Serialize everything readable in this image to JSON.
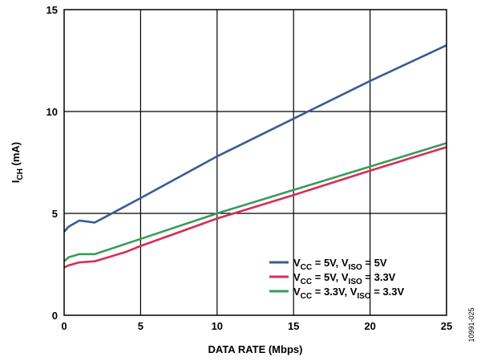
{
  "chart_data": {
    "type": "line",
    "xlabel": "DATA RATE (Mbps)",
    "ylabel": {
      "main": "I",
      "sub": "CH",
      "rest": " (mA)"
    },
    "xlim": [
      0,
      25
    ],
    "ylim": [
      0,
      15
    ],
    "x_ticks": [
      0,
      5,
      10,
      15,
      20,
      25
    ],
    "y_ticks": [
      0,
      5,
      10,
      15
    ],
    "grid": true,
    "legend_position": "bottom-right",
    "figure_id": "10991-025",
    "series": [
      {
        "name": "VCC = 5V, VISO = 5V",
        "legend": [
          {
            "t": "V",
            "s": false
          },
          {
            "t": "CC",
            "s": true
          },
          {
            "t": " = 5V, V",
            "s": false
          },
          {
            "t": "ISO",
            "s": true
          },
          {
            "t": " = 5V",
            "s": false
          }
        ],
        "color": "#3a5b95",
        "x": [
          0,
          0.3,
          1,
          2,
          3,
          5,
          10,
          15,
          20,
          25
        ],
        "y": [
          4.1,
          4.35,
          4.65,
          4.55,
          4.95,
          5.75,
          7.8,
          9.65,
          11.5,
          13.25
        ]
      },
      {
        "name": "VCC = 5V, VISO = 3.3V",
        "legend": [
          {
            "t": "V",
            "s": false
          },
          {
            "t": "CC",
            "s": true
          },
          {
            "t": " = 5V, V",
            "s": false
          },
          {
            "t": "ISO",
            "s": true
          },
          {
            "t": " = 3.3V",
            "s": false
          }
        ],
        "color": "#d92b57",
        "x": [
          0,
          0.3,
          1,
          2,
          4,
          5,
          10,
          15,
          20,
          25
        ],
        "y": [
          2.35,
          2.45,
          2.6,
          2.65,
          3.1,
          3.4,
          4.75,
          5.9,
          7.1,
          8.25
        ]
      },
      {
        "name": "VCC = 3.3V, VISO = 3.3V",
        "legend": [
          {
            "t": "V",
            "s": false
          },
          {
            "t": "CC",
            "s": true
          },
          {
            "t": " = 3.3V, V",
            "s": false
          },
          {
            "t": "ISO",
            "s": true
          },
          {
            "t": " = 3.3V",
            "s": false
          }
        ],
        "color": "#3a9b5a",
        "x": [
          0,
          0.3,
          1,
          2,
          5,
          10,
          15,
          20,
          25
        ],
        "y": [
          2.65,
          2.85,
          3.0,
          3.0,
          3.75,
          5.0,
          6.15,
          7.3,
          8.45
        ]
      }
    ]
  }
}
